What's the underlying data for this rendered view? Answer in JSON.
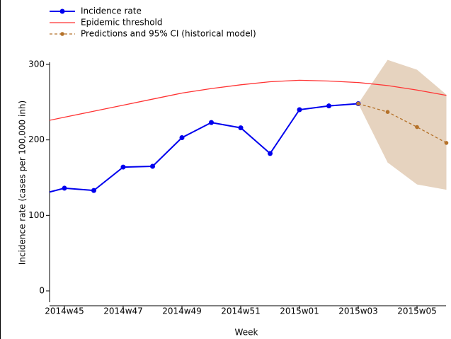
{
  "chart_data": {
    "type": "line",
    "x_label": "Week",
    "y_label": "Incidence rate (cases per 100,000 inh)",
    "categories": [
      null,
      "2014w45",
      null,
      "2014w47",
      null,
      "2014w49",
      null,
      "2014w51",
      null,
      "2015w01",
      null,
      "2015w03",
      null,
      "2015w05",
      null
    ],
    "series": [
      {
        "name": "Incidence rate",
        "color": "#0000ee",
        "marker": true,
        "dashed": false,
        "values": [
          126,
          136,
          133,
          164,
          165,
          203,
          223,
          216,
          182,
          240,
          245,
          248,
          null,
          null,
          null
        ]
      },
      {
        "name": "Epidemic threshold",
        "color": "#ff3333",
        "marker": false,
        "dashed": false,
        "values": [
          222,
          230,
          238,
          246,
          254,
          262,
          268,
          273,
          277,
          279,
          278,
          276,
          272,
          266,
          259
        ]
      },
      {
        "name": "Predictions and 95% CI (historical model)",
        "color": "#b5722a",
        "marker": true,
        "dashed": true,
        "band_color": "#e6d3bf",
        "values": [
          null,
          null,
          null,
          null,
          null,
          null,
          null,
          null,
          null,
          null,
          null,
          248,
          237,
          217,
          196
        ],
        "ci_upper": [
          null,
          null,
          null,
          null,
          null,
          null,
          null,
          null,
          null,
          null,
          null,
          248,
          306,
          293,
          260
        ],
        "ci_lower": [
          null,
          null,
          null,
          null,
          null,
          null,
          null,
          null,
          null,
          null,
          null,
          248,
          170,
          141,
          134
        ]
      }
    ],
    "ylim": [
      -15,
      300
    ],
    "yticks": [
      0,
      100,
      200,
      300
    ],
    "legend": "top-left"
  }
}
